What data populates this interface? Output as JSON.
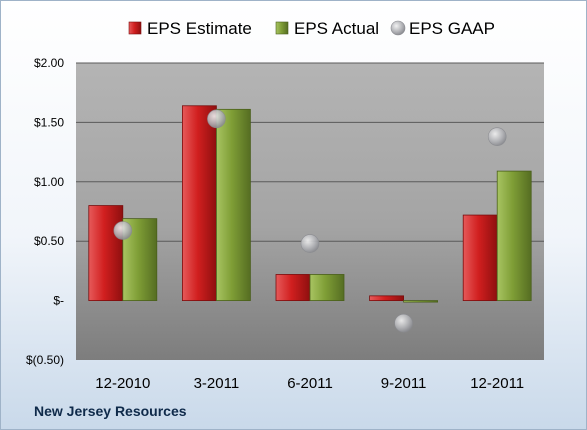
{
  "chart_data": {
    "type": "bar",
    "categories": [
      "12-2010",
      "3-2011",
      "6-2011",
      "9-2011",
      "12-2011"
    ],
    "series": [
      {
        "name": "EPS Estimate",
        "kind": "bar",
        "values": [
          0.8,
          1.64,
          0.22,
          0.04,
          0.72
        ],
        "color": "#cc1f1f"
      },
      {
        "name": "EPS Actual",
        "kind": "bar",
        "values": [
          0.69,
          1.61,
          0.22,
          0.0,
          1.09
        ],
        "color": "#7a9a35"
      },
      {
        "name": "EPS GAAP",
        "kind": "marker",
        "values": [
          0.59,
          1.53,
          0.48,
          -0.19,
          1.38
        ],
        "color": "#a8aab0"
      }
    ],
    "y_ticks": [
      {
        "value": 2.0,
        "label": "$2.00"
      },
      {
        "value": 1.5,
        "label": "$1.50"
      },
      {
        "value": 1.0,
        "label": "$1.00"
      },
      {
        "value": 0.5,
        "label": "$0.50"
      },
      {
        "value": 0.0,
        "label": "$-"
      },
      {
        "value": -0.5,
        "label": "$(0.50)"
      }
    ],
    "ylim": [
      -0.5,
      2.0
    ],
    "grid": true,
    "legend_position": "top",
    "caption": "New Jersey Resources"
  }
}
